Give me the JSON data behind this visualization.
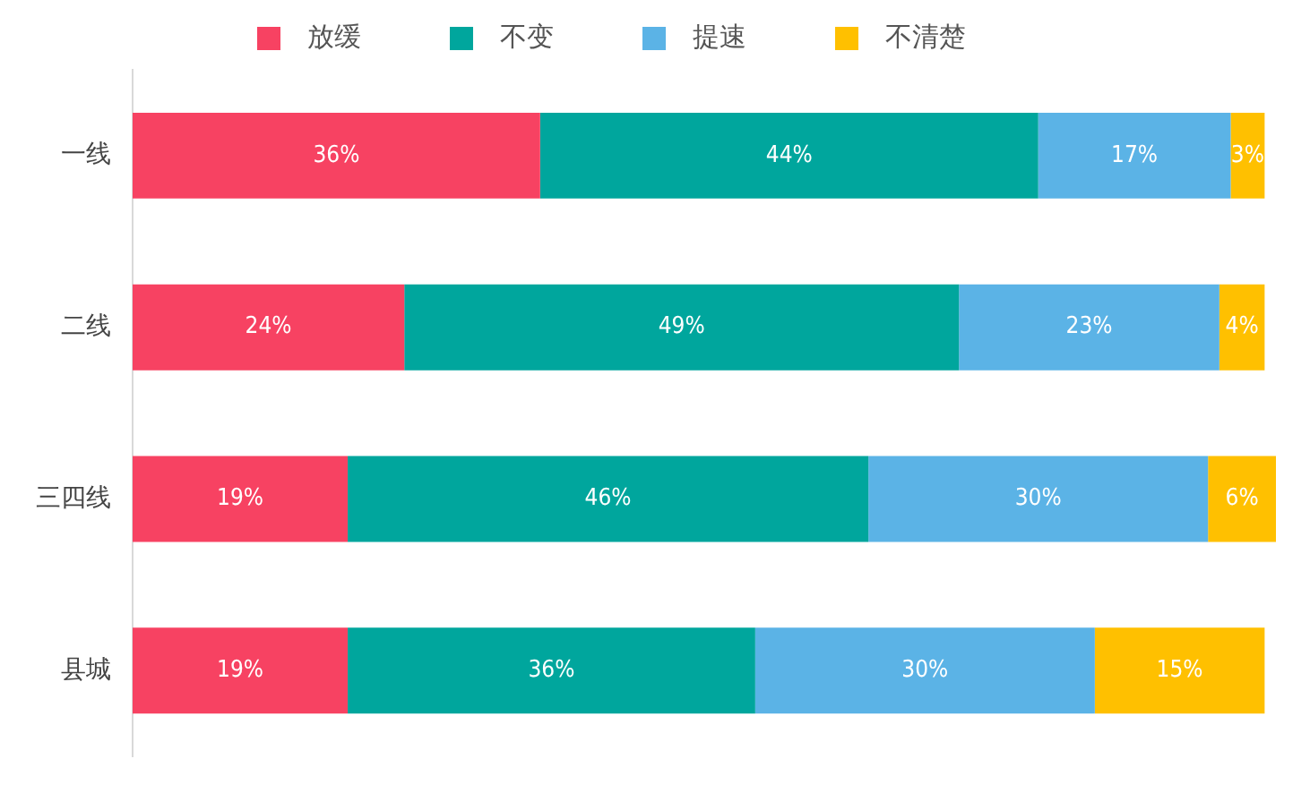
{
  "chart_data": {
    "type": "bar",
    "orientation": "horizontal",
    "stacked": true,
    "categories": [
      "一线",
      "二线",
      "三四线",
      "县城"
    ],
    "series": [
      {
        "name": "放缓",
        "color": "#f74262",
        "values": [
          36,
          24,
          19,
          19
        ],
        "value_labels": [
          "36%",
          "24%",
          "19%",
          "19%"
        ]
      },
      {
        "name": "不变",
        "color": "#00a69d",
        "values": [
          44,
          49,
          46,
          36
        ],
        "value_labels": [
          "44%",
          "49%",
          "46%",
          "36%"
        ]
      },
      {
        "name": "提速",
        "color": "#5bb3e6",
        "values": [
          17,
          23,
          30,
          30
        ],
        "value_labels": [
          "17%",
          "23%",
          "30%",
          "30%"
        ]
      },
      {
        "name": "不清楚",
        "color": "#ffc000",
        "values": [
          3,
          4,
          6,
          15
        ],
        "value_labels": [
          "3%",
          "4%",
          "6%",
          "15%"
        ]
      }
    ],
    "legend": "top",
    "grid": false,
    "tick_labels": "y"
  }
}
